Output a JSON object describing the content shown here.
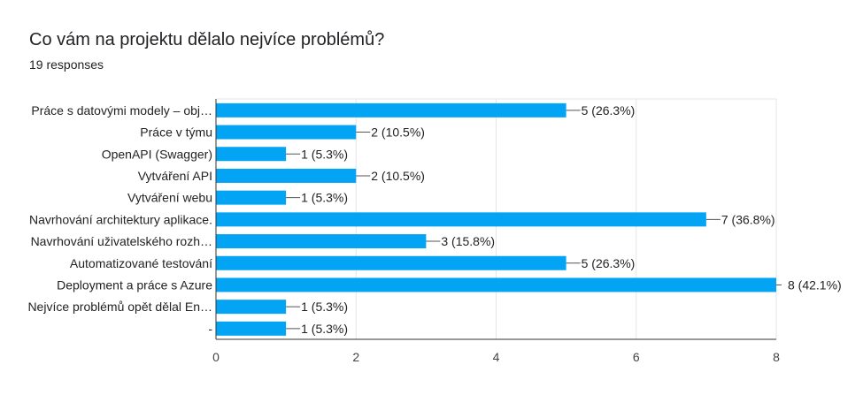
{
  "header": {
    "title": "Co vám na projektu dělalo nejvíce problémů?",
    "responses": "19 responses"
  },
  "colors": {
    "bar": "#04a4f4",
    "grid": "#e6e6e6",
    "axis": "#333333",
    "leader": "#555555"
  },
  "chart_data": {
    "type": "bar",
    "orientation": "horizontal",
    "title": "Co vám na projektu dělalo nejvíce problémů?",
    "subtitle": "19 responses",
    "categories": [
      "Práce s datovými modely – obj…",
      "Práce v týmu",
      "OpenAPI (Swagger)",
      "Vytváření API",
      "Vytváření webu",
      "Navrhování architektury aplikace.",
      "Navrhování uživatelského rozh…",
      "Automatizované testování",
      "Deployment a práce s Azure",
      "Nejvíce problémů opět dělal En…",
      "-"
    ],
    "values": [
      5,
      2,
      1,
      2,
      1,
      7,
      3,
      5,
      8,
      1,
      1
    ],
    "data_labels": [
      "5 (26.3%)",
      "2 (10.5%)",
      "1 (5.3%)",
      "2 (10.5%)",
      "1 (5.3%)",
      "7 (36.8%)",
      "3 (15.8%)",
      "5 (26.3%)",
      "8 (42.1%)",
      "1 (5.3%)",
      "1 (5.3%)"
    ],
    "xlim": [
      0,
      8
    ],
    "xticks": [
      0,
      2,
      4,
      6,
      8
    ],
    "xtick_labels": [
      "0",
      "2",
      "4",
      "6",
      "8"
    ],
    "xlabel": "",
    "ylabel": "",
    "grid": true
  }
}
